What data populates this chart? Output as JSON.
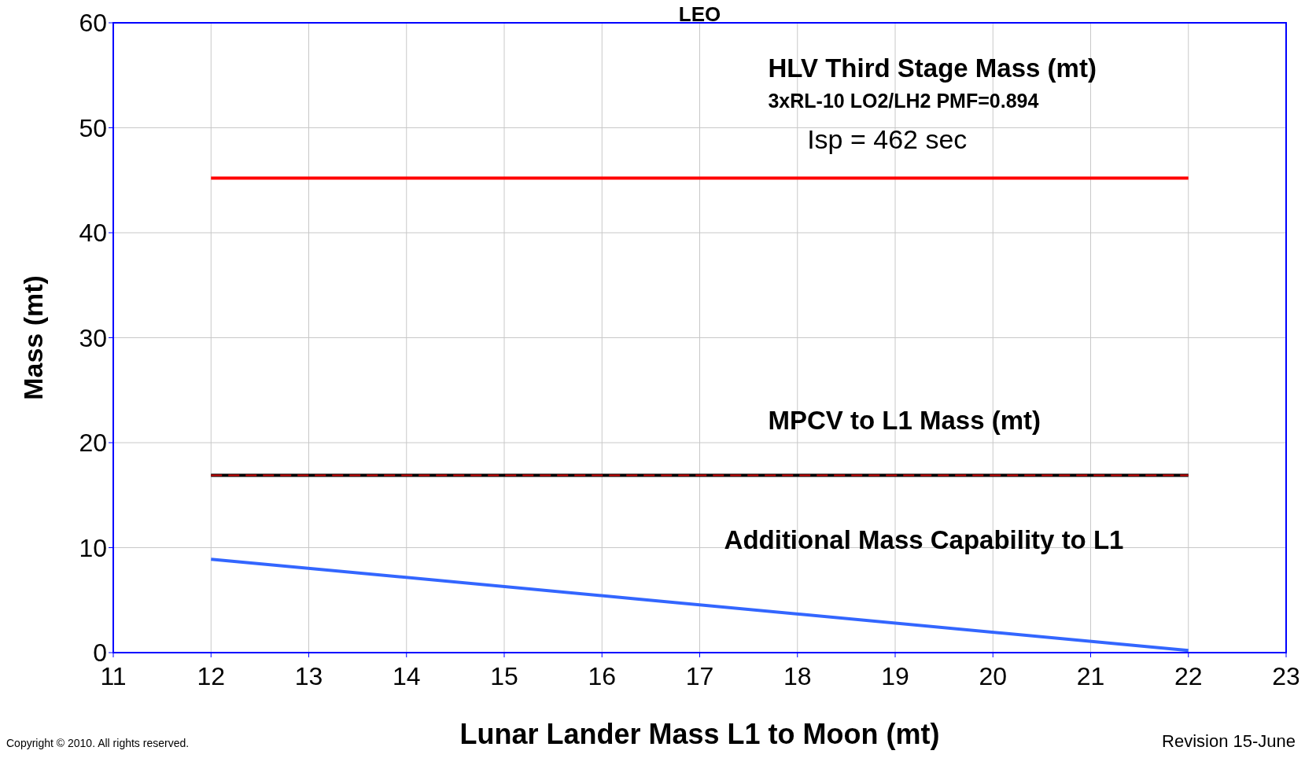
{
  "chart_data": {
    "type": "line",
    "title": "LEO",
    "xlabel": "Lunar Lander Mass L1 to Moon (mt)",
    "ylabel": "Mass (mt)",
    "x": [
      12,
      22
    ],
    "series": [
      {
        "color": "#ff0000",
        "values": [
          45.2,
          45.2
        ]
      },
      {
        "color": "#000000",
        "values": [
          16.9,
          16.9
        ]
      },
      {
        "color": "#cc0000",
        "values": [
          16.9,
          16.9
        ],
        "line_style": "dashed"
      },
      {
        "color": "#3366ff",
        "values": [
          8.9,
          0.2
        ]
      }
    ],
    "xlim": [
      11,
      23
    ],
    "xticks": [
      11,
      12,
      13,
      14,
      15,
      16,
      17,
      18,
      19,
      20,
      21,
      22,
      23
    ],
    "ylim": [
      0,
      60
    ],
    "yticks": [
      0,
      10,
      20,
      30,
      40,
      50,
      60
    ],
    "grid": true,
    "marker": "none",
    "line_style": "solid",
    "annotations": [
      "HLV Third Stage Mass (mt)",
      "3xRL-10 LO2/LH2 PMF=0.894",
      "Isp = 462 sec",
      "MPCV to L1 Mass (mt)",
      "Additional Mass Capability to L1",
      "Copyright © 2010. All rights reserved.",
      "Revision 15-June"
    ]
  }
}
